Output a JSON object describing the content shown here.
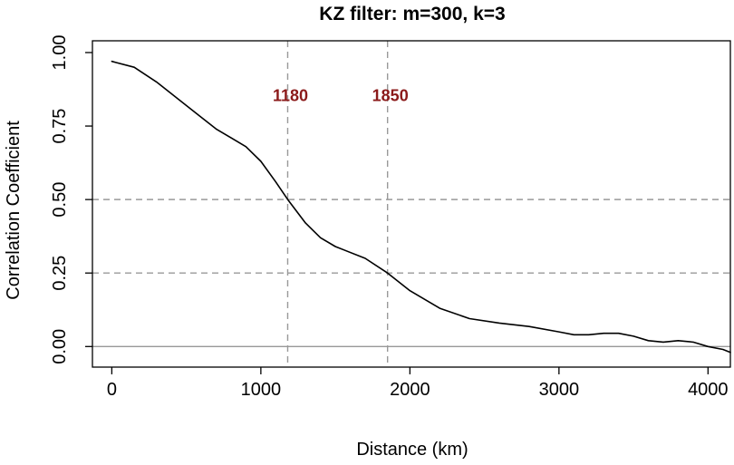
{
  "chart_data": {
    "type": "line",
    "title": "KZ filter: m=300, k=3",
    "xlabel": "Distance (km)",
    "ylabel": "Correlation Coefficient",
    "xlim": [
      -130,
      4150
    ],
    "ylim": [
      -0.07,
      1.04
    ],
    "x_ticks": [
      0,
      1000,
      2000,
      3000,
      4000
    ],
    "x_tick_labels": [
      "0",
      "1000",
      "2000",
      "3000",
      "4000"
    ],
    "y_ticks": [
      0.0,
      0.25,
      0.5,
      0.75,
      1.0
    ],
    "y_tick_labels": [
      "0.00",
      "0.25",
      "0.50",
      "0.75",
      "1.00"
    ],
    "grid": false,
    "series": [
      {
        "x": [
          0,
          150,
          300,
          500,
          700,
          900,
          1000,
          1100,
          1180,
          1300,
          1400,
          1500,
          1700,
          1850,
          2000,
          2200,
          2400,
          2600,
          2800,
          3000,
          3100,
          3200,
          3300,
          3400,
          3500,
          3600,
          3700,
          3800,
          3900,
          4000,
          4100,
          4150
        ],
        "y": [
          0.97,
          0.95,
          0.9,
          0.82,
          0.74,
          0.68,
          0.63,
          0.56,
          0.5,
          0.42,
          0.37,
          0.34,
          0.3,
          0.25,
          0.19,
          0.13,
          0.095,
          0.08,
          0.068,
          0.05,
          0.04,
          0.04,
          0.045,
          0.045,
          0.035,
          0.02,
          0.015,
          0.02,
          0.015,
          0.0,
          -0.01,
          -0.02
        ],
        "color": "#000000"
      }
    ],
    "reference_lines": {
      "horizontal": [
        {
          "y": 0.5,
          "style": "dashed",
          "color": "#999999"
        },
        {
          "y": 0.25,
          "style": "dashed",
          "color": "#999999"
        },
        {
          "y": 0.0,
          "style": "solid",
          "color": "#999999"
        }
      ],
      "vertical": [
        {
          "x": 1180,
          "style": "dashed",
          "color": "#999999"
        },
        {
          "x": 1850,
          "style": "dashed",
          "color": "#999999"
        }
      ]
    },
    "annotations": [
      {
        "text": "1180",
        "x": 1180,
        "y": 0.85,
        "color": "#8b1a1a"
      },
      {
        "text": "1850",
        "x": 1850,
        "y": 0.85,
        "color": "#8b1a1a"
      }
    ]
  }
}
